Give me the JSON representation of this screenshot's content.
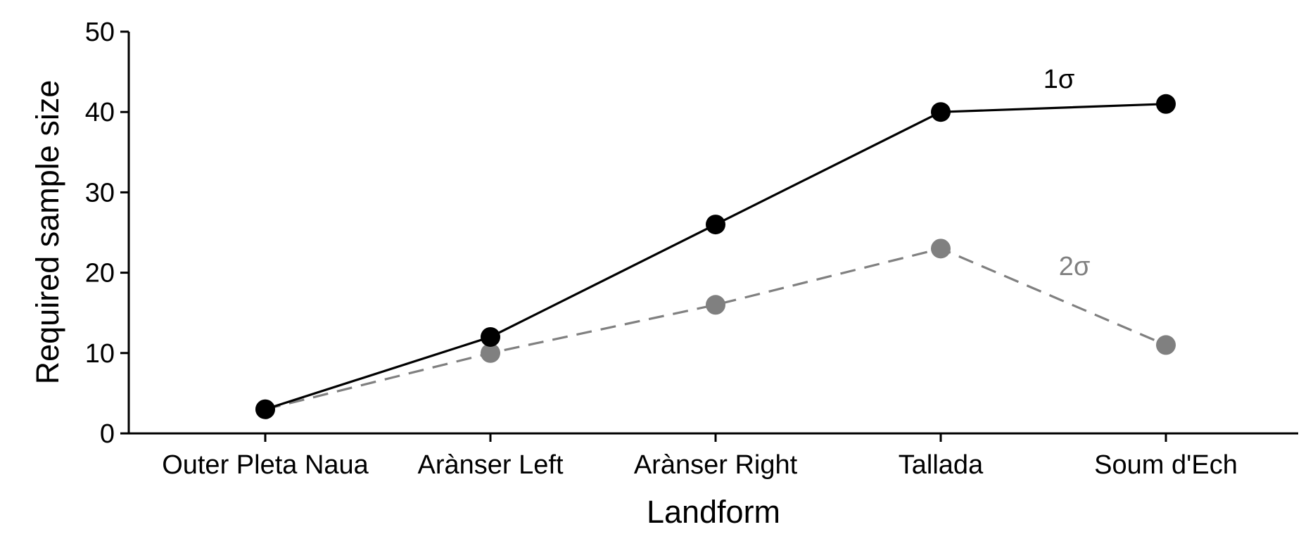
{
  "chart_data": {
    "type": "line",
    "title": "",
    "xlabel": "Landform",
    "ylabel": "Required sample size",
    "categories": [
      "Outer Pleta Naua",
      "Arànser Left",
      "Arànser Right",
      "Tallada",
      "Soum d'Ech"
    ],
    "ylim": [
      0,
      50
    ],
    "yticks": [
      0,
      10,
      20,
      30,
      40,
      50
    ],
    "grid": false,
    "legend": "none",
    "series": [
      {
        "name": "1σ",
        "values": [
          3,
          12,
          26,
          40,
          41
        ],
        "color": "#000000",
        "dash": "solid"
      },
      {
        "name": "2σ",
        "values": [
          3,
          10,
          16,
          23,
          11
        ],
        "color": "#808080",
        "dash": "dashed"
      }
    ]
  }
}
